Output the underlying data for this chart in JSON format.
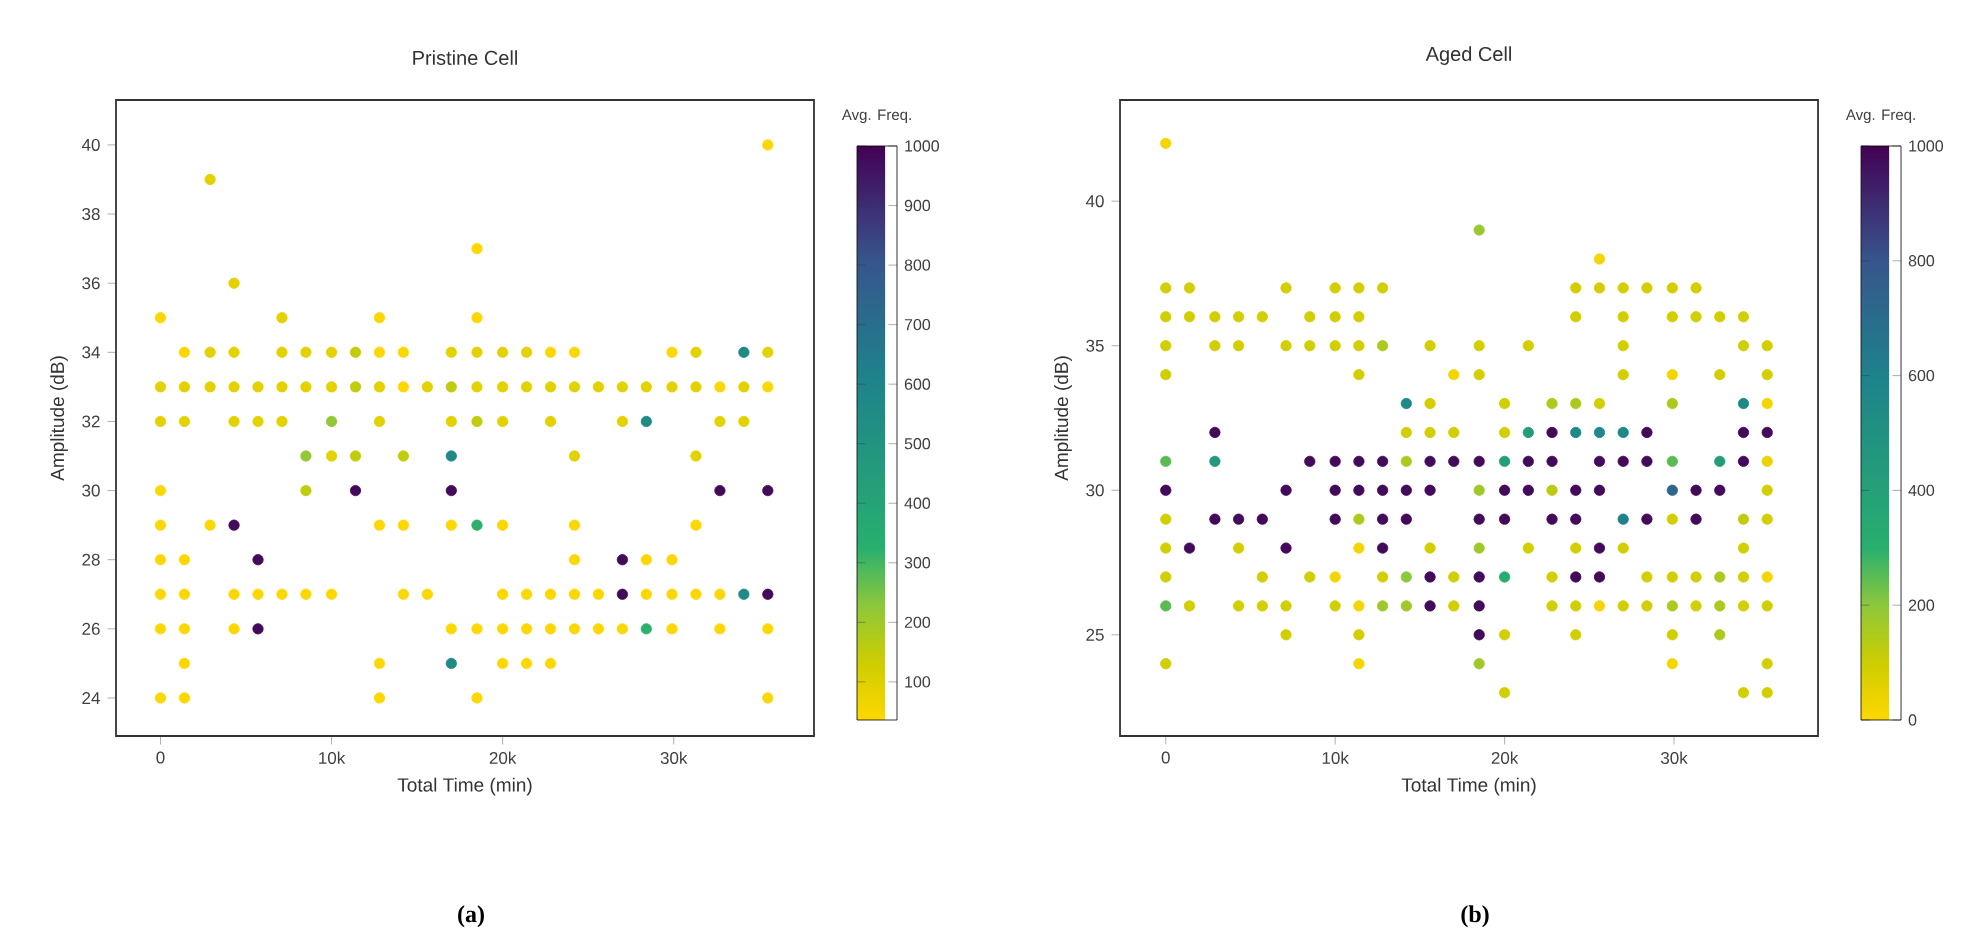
{
  "chart_data": [
    {
      "type": "scatter",
      "title": "Pristine Cell",
      "xlabel": "Total Time (min)",
      "ylabel": "Amplitude (dB)",
      "clabel": "Avg. Freq.",
      "annotations": [
        "(a)"
      ],
      "marker": "circle",
      "xlim": [
        -2600,
        38200
      ],
      "ylim": [
        22.9,
        41.3
      ],
      "xticks": [
        0,
        {
          "value": 10000,
          "label": "10k"
        },
        {
          "value": 20000,
          "label": "20k"
        },
        {
          "value": 30000,
          "label": "30k"
        }
      ],
      "yticks": [
        24,
        26,
        28,
        30,
        32,
        34,
        36,
        38,
        40
      ],
      "clim": [
        36,
        1000
      ],
      "cticks": [
        100,
        200,
        300,
        400,
        500,
        600,
        700,
        800,
        900,
        1000
      ],
      "x": [
        35500,
        2900,
        18500,
        4300,
        0,
        7100,
        12800,
        18500,
        1400,
        2900,
        4300,
        7100,
        8500,
        10000,
        11400,
        12800,
        14200,
        17000,
        18500,
        20000,
        21400,
        22800,
        24200,
        29900,
        31300,
        34100,
        35500,
        0,
        1400,
        2900,
        4300,
        5700,
        7100,
        8500,
        10000,
        11400,
        12800,
        14200,
        15600,
        17000,
        18500,
        20000,
        21400,
        22800,
        24200,
        25600,
        27000,
        28400,
        29900,
        31300,
        32700,
        34100,
        35500,
        0,
        1400,
        4300,
        5700,
        7100,
        10000,
        12800,
        17000,
        18500,
        20000,
        22800,
        27000,
        28400,
        32700,
        34100,
        8500,
        10000,
        11400,
        14200,
        17000,
        24200,
        31300,
        0,
        8500,
        11400,
        17000,
        32700,
        35500,
        0,
        2900,
        4300,
        12800,
        14200,
        17000,
        18500,
        20000,
        24200,
        31300,
        0,
        1400,
        5700,
        24200,
        27000,
        28400,
        29900,
        0,
        1400,
        4300,
        5700,
        7100,
        8500,
        10000,
        14200,
        15600,
        20000,
        21400,
        22800,
        24200,
        25600,
        27000,
        28400,
        29900,
        31300,
        32700,
        34100,
        35500,
        0,
        1400,
        4300,
        5700,
        17000,
        18500,
        20000,
        21400,
        22800,
        24200,
        25600,
        27000,
        28400,
        29900,
        32700,
        35500,
        1400,
        12800,
        17000,
        20000,
        21400,
        22800,
        0,
        1400,
        12800,
        18500,
        35500
      ],
      "values": [
        40,
        39,
        37,
        36,
        35,
        35,
        35,
        35,
        34,
        34,
        34,
        34,
        34,
        34,
        34,
        34,
        34,
        34,
        34,
        34,
        34,
        34,
        34,
        34,
        34,
        34,
        34,
        33,
        33,
        33,
        33,
        33,
        33,
        33,
        33,
        33,
        33,
        33,
        33,
        33,
        33,
        33,
        33,
        33,
        33,
        33,
        33,
        33,
        33,
        33,
        33,
        33,
        33,
        32,
        32,
        32,
        32,
        32,
        32,
        32,
        32,
        32,
        32,
        32,
        32,
        32,
        32,
        32,
        31,
        31,
        31,
        31,
        31,
        31,
        31,
        30,
        30,
        30,
        30,
        30,
        30,
        29,
        29,
        29,
        29,
        29,
        29,
        29,
        29,
        29,
        29,
        28,
        28,
        28,
        28,
        28,
        28,
        28,
        27,
        27,
        27,
        27,
        27,
        27,
        27,
        27,
        27,
        27,
        27,
        27,
        27,
        27,
        27,
        27,
        27,
        27,
        27,
        27,
        27,
        26,
        26,
        26,
        26,
        26,
        26,
        26,
        26,
        26,
        26,
        26,
        26,
        26,
        26,
        26,
        26,
        25,
        25,
        25,
        25,
        25,
        25,
        24,
        24,
        24,
        24,
        24
      ],
      "cvalues": [
        40,
        90,
        40,
        90,
        40,
        90,
        40,
        40,
        40,
        90,
        90,
        90,
        90,
        90,
        150,
        40,
        40,
        90,
        90,
        90,
        90,
        40,
        40,
        40,
        90,
        560,
        90,
        90,
        90,
        90,
        90,
        90,
        90,
        90,
        90,
        150,
        90,
        40,
        90,
        150,
        90,
        90,
        90,
        90,
        90,
        90,
        90,
        90,
        90,
        90,
        40,
        90,
        40,
        90,
        90,
        90,
        90,
        90,
        220,
        90,
        90,
        150,
        90,
        90,
        90,
        560,
        90,
        90,
        220,
        90,
        150,
        150,
        560,
        90,
        90,
        40,
        150,
        980,
        980,
        980,
        980,
        40,
        40,
        980,
        40,
        40,
        40,
        320,
        40,
        40,
        40,
        40,
        40,
        980,
        40,
        980,
        40,
        40,
        40,
        40,
        40,
        40,
        40,
        40,
        40,
        40,
        40,
        40,
        40,
        40,
        40,
        40,
        980,
        40,
        40,
        40,
        40,
        560,
        980,
        40,
        40,
        40,
        980,
        40,
        40,
        40,
        40,
        40,
        40,
        40,
        40,
        320,
        40,
        40,
        40,
        40,
        40,
        560,
        40,
        40,
        40,
        40,
        40,
        40,
        40,
        40
      ]
    },
    {
      "type": "scatter",
      "title": "Aged Cell",
      "xlabel": "Total Time (min)",
      "ylabel": "Amplitude (dB)",
      "clabel": "Avg. Freq.",
      "annotations": [
        "(b)"
      ],
      "marker": "circle",
      "xlim": [
        -2700,
        38500
      ],
      "ylim": [
        21.5,
        43.5
      ],
      "xticks": [
        0,
        {
          "value": 10000,
          "label": "10k"
        },
        {
          "value": 20000,
          "label": "20k"
        },
        {
          "value": 30000,
          "label": "30k"
        }
      ],
      "yticks": [
        25,
        30,
        35,
        40
      ],
      "clim": [
        0,
        1000
      ],
      "cticks": [
        0,
        200,
        400,
        600,
        800,
        1000
      ],
      "x": [
        0,
        18500,
        25600,
        0,
        1400,
        7100,
        10000,
        11400,
        12800,
        24200,
        25600,
        27000,
        28400,
        29900,
        31300,
        0,
        1400,
        2900,
        4300,
        5700,
        8500,
        10000,
        11400,
        24200,
        27000,
        29900,
        31300,
        32700,
        34100,
        0,
        2900,
        4300,
        7100,
        8500,
        10000,
        11400,
        12800,
        15600,
        18500,
        21400,
        27000,
        34100,
        35500,
        0,
        11400,
        17000,
        18500,
        27000,
        29900,
        32700,
        35500,
        14200,
        15600,
        20000,
        22800,
        24200,
        25600,
        29900,
        34100,
        35500,
        2900,
        14200,
        15600,
        17000,
        20000,
        21400,
        22800,
        24200,
        25600,
        27000,
        28400,
        34100,
        35500,
        0,
        2900,
        8500,
        10000,
        11400,
        12800,
        14200,
        15600,
        17000,
        18500,
        20000,
        21400,
        22800,
        25600,
        27000,
        28400,
        29900,
        32700,
        34100,
        35500,
        0,
        7100,
        10000,
        11400,
        12800,
        14200,
        15600,
        18500,
        20000,
        21400,
        22800,
        24200,
        25600,
        29900,
        31300,
        32700,
        35500,
        0,
        2900,
        4300,
        5700,
        10000,
        11400,
        12800,
        14200,
        18500,
        20000,
        22800,
        24200,
        27000,
        28400,
        29900,
        31300,
        34100,
        35500,
        0,
        1400,
        4300,
        7100,
        11400,
        12800,
        15600,
        18500,
        21400,
        24200,
        25600,
        27000,
        34100,
        0,
        5700,
        8500,
        10000,
        12800,
        14200,
        15600,
        17000,
        18500,
        20000,
        22800,
        24200,
        25600,
        28400,
        29900,
        31300,
        32700,
        34100,
        35500,
        0,
        1400,
        4300,
        5700,
        7100,
        10000,
        11400,
        12800,
        14200,
        15600,
        17000,
        18500,
        22800,
        24200,
        25600,
        27000,
        28400,
        29900,
        31300,
        32700,
        34100,
        35500,
        7100,
        11400,
        18500,
        20000,
        24200,
        29900,
        32700,
        0,
        11400,
        18500,
        29900,
        35500,
        20000,
        34100,
        35500
      ],
      "values": [
        42,
        39,
        38,
        37,
        37,
        37,
        37,
        37,
        37,
        37,
        37,
        37,
        37,
        37,
        37,
        36,
        36,
        36,
        36,
        36,
        36,
        36,
        36,
        36,
        36,
        36,
        36,
        36,
        36,
        35,
        35,
        35,
        35,
        35,
        35,
        35,
        35,
        35,
        35,
        35,
        35,
        35,
        35,
        34,
        34,
        34,
        34,
        34,
        34,
        34,
        34,
        33,
        33,
        33,
        33,
        33,
        33,
        33,
        33,
        33,
        32,
        32,
        32,
        32,
        32,
        32,
        32,
        32,
        32,
        32,
        32,
        32,
        32,
        31,
        31,
        31,
        31,
        31,
        31,
        31,
        31,
        31,
        31,
        31,
        31,
        31,
        31,
        31,
        31,
        31,
        31,
        31,
        31,
        30,
        30,
        30,
        30,
        30,
        30,
        30,
        30,
        30,
        30,
        30,
        30,
        30,
        30,
        30,
        30,
        30,
        29,
        29,
        29,
        29,
        29,
        29,
        29,
        29,
        29,
        29,
        29,
        29,
        29,
        29,
        29,
        29,
        29,
        29,
        28,
        28,
        28,
        28,
        28,
        28,
        28,
        28,
        28,
        28,
        28,
        28,
        28,
        27,
        27,
        27,
        27,
        27,
        27,
        27,
        27,
        27,
        27,
        27,
        27,
        27,
        27,
        27,
        27,
        27,
        27,
        27,
        26,
        26,
        26,
        26,
        26,
        26,
        26,
        26,
        26,
        26,
        26,
        26,
        26,
        26,
        26,
        26,
        26,
        26,
        26,
        26,
        26,
        26,
        25,
        25,
        25,
        25,
        25,
        25,
        25,
        24,
        24,
        24,
        24,
        24,
        23,
        23,
        23
      ],
      "cvalues": [
        20,
        180,
        20,
        90,
        90,
        90,
        90,
        90,
        90,
        90,
        90,
        90,
        90,
        90,
        90,
        90,
        90,
        90,
        90,
        90,
        90,
        90,
        90,
        90,
        90,
        90,
        90,
        90,
        90,
        90,
        90,
        90,
        90,
        90,
        90,
        90,
        150,
        90,
        90,
        90,
        90,
        90,
        90,
        90,
        90,
        20,
        90,
        90,
        20,
        90,
        90,
        560,
        90,
        90,
        150,
        150,
        90,
        150,
        560,
        20,
        980,
        90,
        90,
        90,
        90,
        420,
        980,
        560,
        560,
        560,
        980,
        980,
        980,
        250,
        450,
        980,
        980,
        980,
        980,
        150,
        980,
        980,
        980,
        420,
        980,
        980,
        980,
        980,
        980,
        250,
        420,
        980,
        40,
        980,
        980,
        980,
        980,
        980,
        980,
        980,
        170,
        980,
        980,
        130,
        980,
        980,
        720,
        980,
        980,
        90,
        90,
        980,
        980,
        980,
        980,
        150,
        980,
        980,
        980,
        980,
        980,
        980,
        600,
        980,
        90,
        980,
        120,
        90,
        90,
        980,
        90,
        980,
        20,
        980,
        90,
        170,
        90,
        90,
        980,
        90,
        90,
        90,
        90,
        90,
        20,
        90,
        200,
        980,
        90,
        980,
        320,
        90,
        980,
        980,
        90,
        90,
        90,
        150,
        90,
        20,
        250,
        90,
        90,
        90,
        90,
        90,
        20,
        170,
        170,
        980,
        90,
        980,
        90,
        90,
        20,
        90,
        90,
        150,
        90,
        150,
        90,
        90,
        90,
        90,
        980,
        90,
        90,
        90,
        150,
        90,
        20,
        170,
        20,
        90,
        90,
        90,
        90
      ]
    }
  ]
}
